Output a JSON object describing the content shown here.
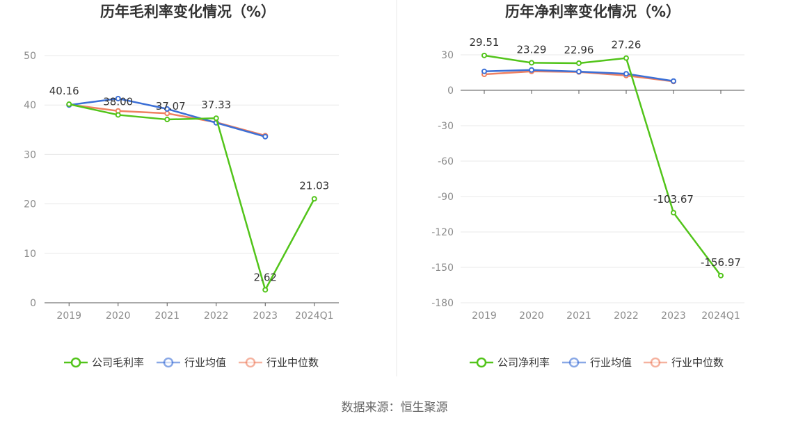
{
  "footer": "数据来源：恒生聚源",
  "colors": {
    "company": "#52c41a",
    "avg": "#3b6fd6",
    "median": "#ef8060",
    "grid": "#e8e8e8",
    "axis": "#555555"
  },
  "chart_data": [
    {
      "type": "line",
      "title": "历年毛利率变化情况（%）",
      "categories": [
        "2019",
        "2020",
        "2021",
        "2022",
        "2023",
        "2024Q1"
      ],
      "ylim": [
        0,
        50
      ],
      "yticks": [
        0,
        10,
        20,
        30,
        40,
        50
      ],
      "ytick_labels": [
        "0",
        "10",
        "20",
        "30",
        "40",
        "50"
      ],
      "grid": true,
      "legend_position": "bottom",
      "series": [
        {
          "name": "公司毛利率",
          "color": "#52c41a",
          "values": [
            40.16,
            38.0,
            37.07,
            37.33,
            2.62,
            21.03
          ],
          "labels": [
            "40.16",
            "38.00",
            "37.07",
            "37.33",
            "2.62",
            "21.03"
          ]
        },
        {
          "name": "行业均值",
          "color": "#3b6fd6",
          "values": [
            40.0,
            41.3,
            39.2,
            36.4,
            33.6,
            null
          ]
        },
        {
          "name": "行业中位数",
          "color": "#ef8060",
          "values": [
            40.1,
            38.8,
            38.3,
            36.5,
            33.8,
            null
          ]
        }
      ]
    },
    {
      "type": "line",
      "title": "历年净利率变化情况（%）",
      "categories": [
        "2019",
        "2020",
        "2021",
        "2022",
        "2023",
        "2024Q1"
      ],
      "ylim": [
        -180,
        30
      ],
      "yticks": [
        30,
        0,
        -30,
        -60,
        -90,
        -120,
        -150,
        -180
      ],
      "ytick_labels": [
        "30",
        "0",
        "-30",
        "-60",
        "-90",
        "-120",
        "-150",
        "-180"
      ],
      "grid": true,
      "legend_position": "bottom",
      "series": [
        {
          "name": "公司净利率",
          "color": "#52c41a",
          "values": [
            29.51,
            23.29,
            22.96,
            27.26,
            -103.67,
            -156.97
          ],
          "labels": [
            "29.51",
            "23.29",
            "22.96",
            "27.26",
            "-103.67",
            "-156.97"
          ]
        },
        {
          "name": "行业均值",
          "color": "#3b6fd6",
          "values": [
            16.0,
            17.2,
            15.8,
            14.0,
            7.8,
            null
          ]
        },
        {
          "name": "行业中位数",
          "color": "#ef8060",
          "values": [
            13.5,
            16.0,
            15.5,
            12.5,
            7.5,
            null
          ]
        }
      ]
    }
  ]
}
